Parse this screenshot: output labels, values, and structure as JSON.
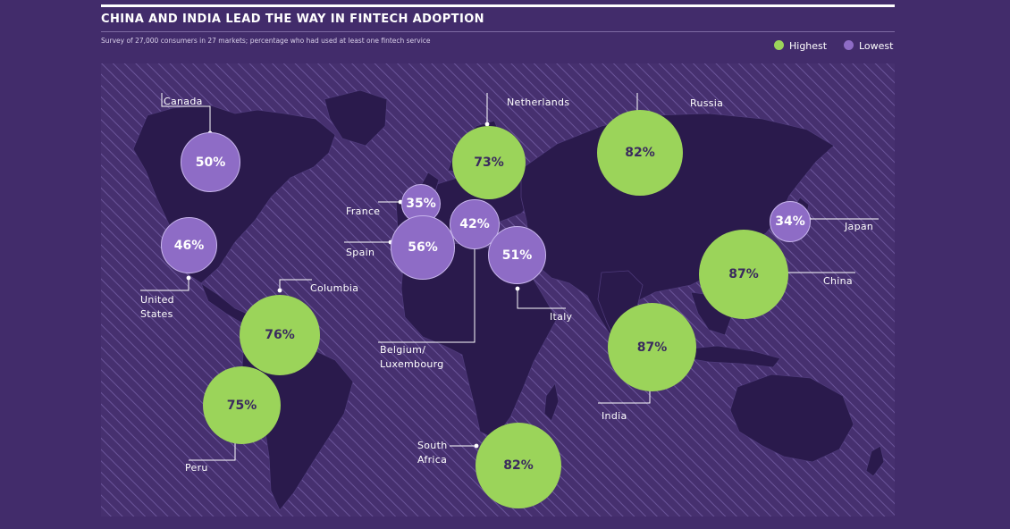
{
  "header": {
    "title": "CHINA AND INDIA LEAD THE WAY IN FINTECH ADOPTION",
    "subtitle": "Survey of 27,000 consumers in 27 markets; percentage who had used at least one fintech service"
  },
  "legend": {
    "highest_label": "Highest",
    "lowest_label": "Lowest",
    "highest_color": "#9bd45a",
    "lowest_color": "#8e6cc6"
  },
  "markets": [
    {
      "id": "canada",
      "name": "Canada",
      "value": "50%",
      "group": "lowest"
    },
    {
      "id": "netherlands",
      "name": "Netherlands",
      "value": "73%",
      "group": "highest"
    },
    {
      "id": "russia",
      "name": "Russia",
      "value": "82%",
      "group": "highest"
    },
    {
      "id": "france",
      "name": "France",
      "value": "35%",
      "group": "lowest"
    },
    {
      "id": "belgium",
      "name_line1": "Belgium/",
      "name_line2": "Luxembourg",
      "value": "42%",
      "group": "lowest"
    },
    {
      "id": "spain",
      "name": "Spain",
      "value": "56%",
      "group": "lowest"
    },
    {
      "id": "italy",
      "name": "Italy",
      "value": "51%",
      "group": "lowest"
    },
    {
      "id": "japan",
      "name": "Japan",
      "value": "34%",
      "group": "lowest"
    },
    {
      "id": "us",
      "name_line1": "United",
      "name_line2": "States",
      "value": "46%",
      "group": "lowest"
    },
    {
      "id": "china",
      "name": "China",
      "value": "87%",
      "group": "highest"
    },
    {
      "id": "columbia",
      "name": "Columbia",
      "value": "76%",
      "group": "highest"
    },
    {
      "id": "india",
      "name": "India",
      "value": "87%",
      "group": "highest"
    },
    {
      "id": "peru",
      "name": "Peru",
      "value": "75%",
      "group": "highest"
    },
    {
      "id": "southafrica",
      "name_line1": "South",
      "name_line2": "Africa",
      "value": "82%",
      "group": "highest"
    }
  ]
}
